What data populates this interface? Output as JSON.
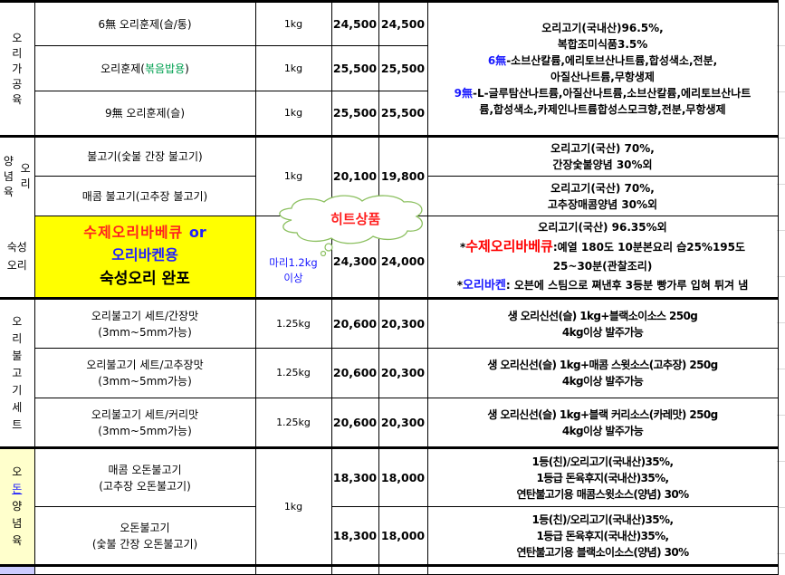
{
  "sections": {
    "processed": "오\n리\n가\n공\n육",
    "marinated_left": "양\n념\n육",
    "marinated_right": "오\n리",
    "aged": "숙성\n오리",
    "bulgogi_set": "오\n리\n불\n고\n기\n세\n트",
    "odon_1": "오",
    "odon_2": "돈",
    "odon_3": "양\n념\n육"
  },
  "rows": {
    "r1": {
      "name": "6無 오리훈제(슬/통)",
      "weight": "1kg",
      "price1": "24,500",
      "price2": "24,500"
    },
    "r2": {
      "name_a": "오리훈제(",
      "name_b": "볶음밥용",
      "name_c": ")",
      "weight": "1kg",
      "price1": "25,500",
      "price2": "25,500"
    },
    "r3": {
      "name": "9無 오리훈제(슬)",
      "weight": "1kg",
      "price1": "25,500",
      "price2": "25,500"
    },
    "processed_desc": {
      "l1": "오리고기(국내산)96.5%,",
      "l2": "복합조미식품3.5%",
      "l3a": "6無",
      "l3b": "-소브산칼륨,에리토브산나트륨,합성색소,전분,",
      "l4": "아질산나트륨,무항생제",
      "l5a": "9無",
      "l5b": "-L-글루탐산나트륨,아질산나트륨,소브산칼륨,에리토브산나트",
      "l6": "륨,합성색소,카제인나트륨합성스모크향,전분,무항생제"
    },
    "r4": {
      "name": "불고기(숯불 간장 불고기)",
      "desc1": "오리고기(국산) 70%,",
      "desc2": "간장숯불양념 30%외"
    },
    "r5": {
      "name": "매콤 불고기(고추장 불고기)",
      "desc1": "오리고기(국산) 70%,",
      "desc2": "고추장매콤양념 30%외"
    },
    "r45": {
      "weight": "1kg",
      "price1": "20,100",
      "price2": "19,800"
    },
    "r6": {
      "name1": "수제오리바베큐 ",
      "name1b": "or",
      "name2": "오리바켄용",
      "name3": "숙성오리 완포",
      "weight1": "마리1.2kg",
      "weight2": "이상",
      "price1": "24,300",
      "price2": "24,000",
      "desc1": "오리고기(국산) 96.35%외",
      "desc2a": "*",
      "desc2b": "수제오리바베큐",
      "desc2c": ":예열 180도 10분본요리 습25%195도",
      "desc3": "25~30분(관찰조리)",
      "desc4a": "*",
      "desc4b": "오리바켄",
      "desc4c": ": 오븐에 스팀으로 쪄낸후 3등분 빵가루 입혀 튀겨 냄"
    },
    "r7": {
      "name1": "오리불고기 세트/간장맛",
      "name2": "(3mm~5mm가능)",
      "weight": "1.25kg",
      "price1": "20,600",
      "price2": "20,300",
      "desc1": "생 오리신선(슬) 1kg+블랙소이소스 250g",
      "desc2": "4kg이상 발주가능"
    },
    "r8": {
      "name1": "오리불고기 세트/고추장맛",
      "name2": "(3mm~5mm가능)",
      "weight": "1.25kg",
      "price1": "20,600",
      "price2": "20,300",
      "desc1": "생 오리신선(슬) 1kg+매콤 스윗소스(고추장) 250g",
      "desc2": "4kg이상 발주가능"
    },
    "r9": {
      "name1": "오리불고기 세트/커리맛",
      "name2": "(3mm~5mm가능)",
      "weight": "1.25kg",
      "price1": "20,600",
      "price2": "20,300",
      "desc1": "생 오리신선(슬) 1kg+블랙 커리소스(카레맛) 250g",
      "desc2": "4kg이상 발주가능"
    },
    "r10": {
      "name1": "매콤 오돈불고기",
      "name2": "(고추장 오돈불고기)",
      "price1": "18,300",
      "price2": "18,000",
      "desc1": "1등(친)/오리고기(국내산)35%,",
      "desc2": "1등급 돈육후지(국내산)35%,",
      "desc3": "연탄불고기용 매콤스윗소스(양념) 30%"
    },
    "r11": {
      "name1": "오돈불고기",
      "name2": "(숯불 간장 오돈불고기)",
      "price1": "18,300",
      "price2": "18,000",
      "desc1": "1등(친)/오리고기(국내산)35%,",
      "desc2": "1등급 돈육후지(국내산)35%,",
      "desc3": "연탄불고기용 블랙소이소스(양념) 30%"
    },
    "r1011": {
      "weight": "1kg"
    }
  },
  "callout": {
    "text": "히트상품",
    "shape": "cloud",
    "color": "#ff2020"
  },
  "colors": {
    "highlight": "#ffff00",
    "green": "#00a050",
    "blue": "#1a1aff",
    "red": "#ff0000",
    "odon_bg": "#ffffcc"
  }
}
